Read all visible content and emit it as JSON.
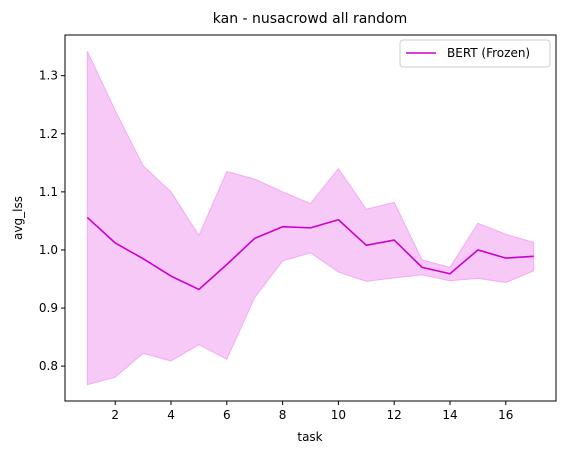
{
  "chart_data": {
    "type": "line",
    "title": "kan - nusacrowd all random",
    "xlabel": "task",
    "ylabel": "avg_lss",
    "xlim": [
      0.2,
      17.8
    ],
    "ylim": [
      0.74,
      1.37
    ],
    "xticks": [
      2,
      4,
      6,
      8,
      10,
      12,
      14,
      16
    ],
    "yticks": [
      0.8,
      0.9,
      1.0,
      1.1,
      1.2,
      1.3
    ],
    "grid": false,
    "legend_position": "top-right",
    "colors": {
      "line": "#cc00cc",
      "band": "#ee88ee"
    },
    "series": [
      {
        "name": "BERT (Frozen)",
        "x": [
          1,
          2,
          3,
          4,
          5,
          6,
          7,
          8,
          9,
          10,
          11,
          12,
          13,
          14,
          15,
          16,
          17
        ],
        "values": [
          1.056,
          1.012,
          0.985,
          0.955,
          0.932,
          0.975,
          1.02,
          1.04,
          1.038,
          1.052,
          1.008,
          1.017,
          0.97,
          0.959,
          1.0,
          0.986,
          0.989
        ],
        "lower": [
          0.768,
          0.781,
          0.822,
          0.809,
          0.837,
          0.812,
          0.918,
          0.981,
          0.995,
          0.962,
          0.946,
          0.952,
          0.957,
          0.947,
          0.951,
          0.944,
          0.964
        ],
        "upper": [
          1.342,
          1.24,
          1.145,
          1.1,
          1.025,
          1.135,
          1.122,
          1.1,
          1.08,
          1.14,
          1.07,
          1.082,
          0.983,
          0.97,
          1.046,
          1.027,
          1.013
        ]
      }
    ]
  }
}
